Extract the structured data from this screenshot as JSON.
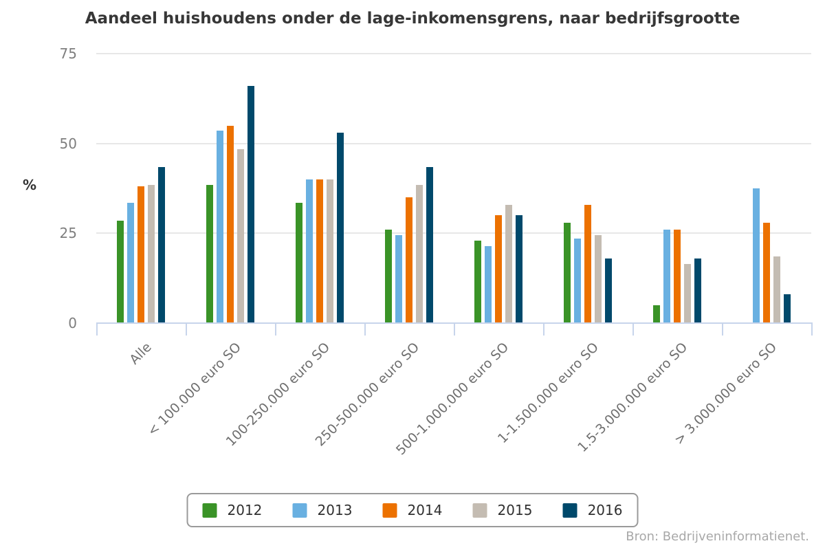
{
  "title": "Aandeel huishoudens onder de lage-inkomensgrens, naar bedrijfsgrootte",
  "source": "Bron: Bedrijveninformatienet.",
  "style_colors": {
    "gridline": "#E7E7E7",
    "axis": "#C7D4EB",
    "title_text": "#373737",
    "y_tick_text": "#7E7E7E",
    "x_label_text": "#6F6F6F",
    "legend_border": "#9A9A9A",
    "legend_text": "#303030",
    "source_text": "#A8A8A8"
  },
  "chart_data": {
    "type": "bar",
    "title": "Aandeel huishoudens onder de lage-inkomensgrens, naar bedrijfsgrootte",
    "xlabel": "",
    "ylabel": "%",
    "ylim": [
      0,
      75
    ],
    "yticks": [
      0,
      25,
      50,
      75
    ],
    "grid": true,
    "legend_position": "bottom",
    "source": "Bron: Bedrijveninformatienet.",
    "categories": [
      "Alle",
      "< 100.000 euro SO",
      "100-250.000 euro SO",
      "250-500.000 euro SO",
      "500-1.000.000 euro SO",
      "1-1.500.000 euro SO",
      "1.5-3.000.000 euro SO",
      "> 3.000.000 euro SO"
    ],
    "series": [
      {
        "name": "2012",
        "color": "#3A9327",
        "values": [
          28.5,
          38.5,
          33.5,
          26,
          23,
          28,
          5,
          0
        ]
      },
      {
        "name": "2013",
        "color": "#69B0E1",
        "values": [
          33.5,
          53.5,
          40,
          24.5,
          21.5,
          23.5,
          26,
          37.5
        ]
      },
      {
        "name": "2014",
        "color": "#EC7100",
        "values": [
          38,
          55,
          40,
          35,
          30,
          33,
          26,
          28
        ]
      },
      {
        "name": "2015",
        "color": "#C4BCB2",
        "values": [
          38.5,
          48.5,
          40,
          38.5,
          33,
          24.5,
          16.5,
          18.5
        ]
      },
      {
        "name": "2016",
        "color": "#00496B",
        "values": [
          43.5,
          66,
          53,
          43.5,
          30,
          18,
          18,
          8
        ]
      }
    ]
  }
}
